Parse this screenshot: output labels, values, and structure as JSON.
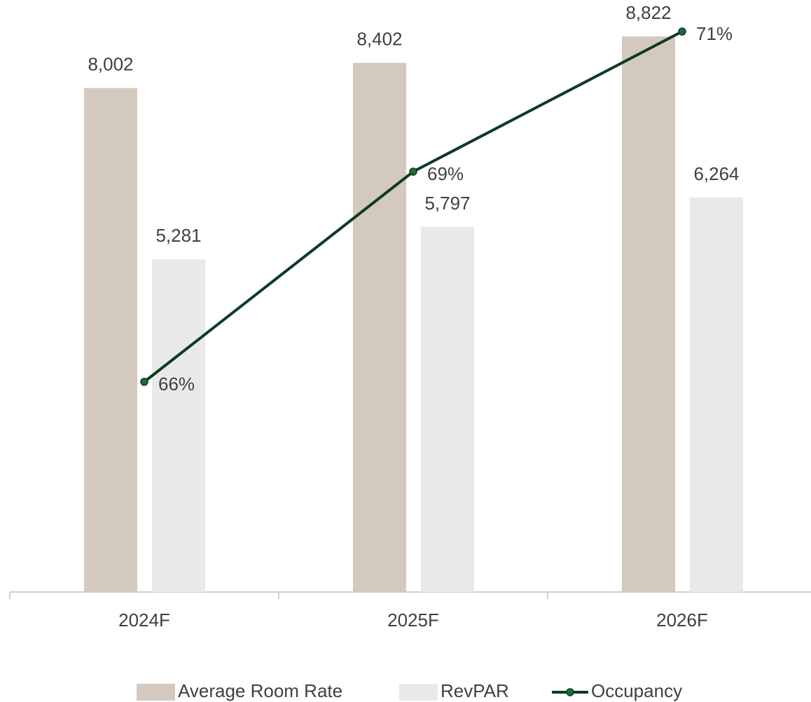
{
  "chart_data": {
    "type": "bar",
    "categories": [
      "2024F",
      "2025F",
      "2026F"
    ],
    "series": [
      {
        "name": "Average Room Rate",
        "type": "bar",
        "color": "#d4c9bf",
        "values": [
          8002,
          8402,
          8822
        ],
        "value_labels": [
          "8,002",
          "8,402",
          "8,822"
        ]
      },
      {
        "name": "RevPAR",
        "type": "bar",
        "color": "#e9e9e9",
        "values": [
          5281,
          5797,
          6264
        ],
        "value_labels": [
          "5,281",
          "5,797",
          "6,264"
        ]
      },
      {
        "name": "Occupancy",
        "type": "line",
        "axis": "y2",
        "color": "#0d3b22",
        "values": [
          66,
          69,
          71
        ],
        "value_labels": [
          "66%",
          "69%",
          "71%"
        ]
      }
    ],
    "ylim": [
      0,
      9400
    ],
    "y2lim": [
      63,
      71.45
    ],
    "legend": "bottom"
  }
}
